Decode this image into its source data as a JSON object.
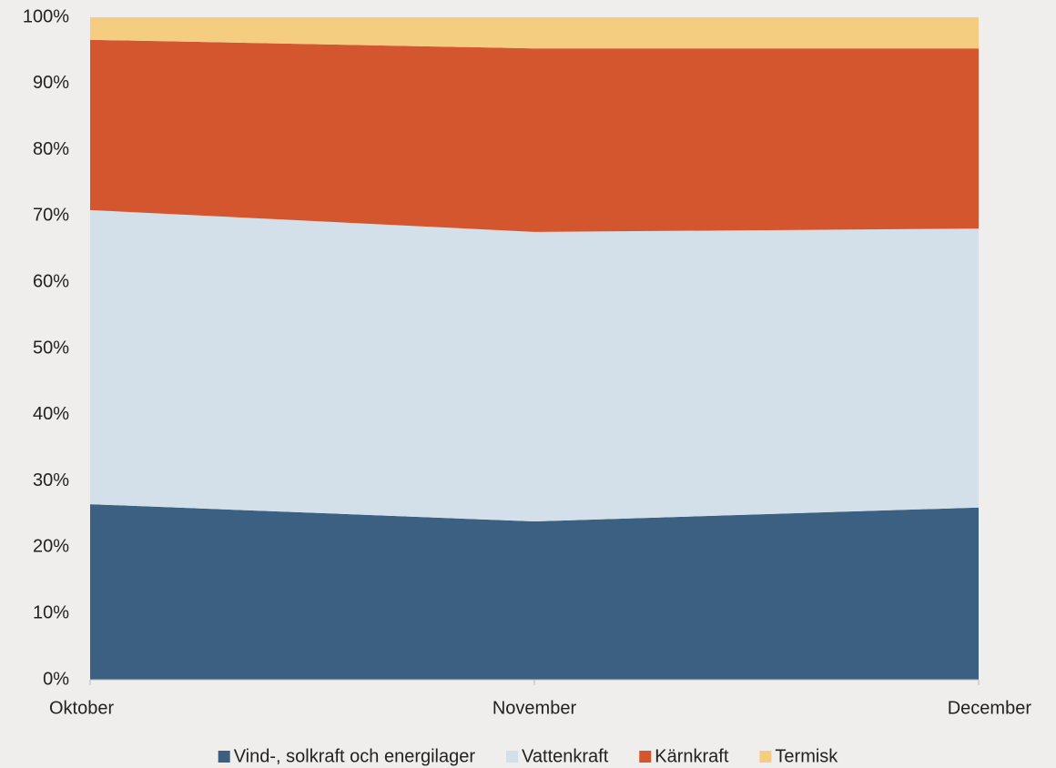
{
  "chart_data": {
    "type": "stacked_area",
    "categories": [
      "Oktober",
      "November",
      "December"
    ],
    "series": [
      {
        "name": "Vind-, solkraft och energilager",
        "color": "#3b6082",
        "values": [
          26.5,
          23.9,
          26.0
        ]
      },
      {
        "name": "Vattenkraft",
        "color": "#d3e0ea",
        "values": [
          44.4,
          43.7,
          42.1
        ]
      },
      {
        "name": "Kärnkraft",
        "color": "#d4562e",
        "values": [
          25.7,
          27.7,
          27.2
        ]
      },
      {
        "name": "Termisk",
        "color": "#f5cd80",
        "values": [
          3.4,
          4.7,
          4.7
        ]
      }
    ],
    "ylim": [
      0,
      100
    ],
    "yticks": [
      {
        "value": 0,
        "label": "0%"
      },
      {
        "value": 10,
        "label": "10%"
      },
      {
        "value": 20,
        "label": "20%"
      },
      {
        "value": 30,
        "label": "30%"
      },
      {
        "value": 40,
        "label": "40%"
      },
      {
        "value": 50,
        "label": "50%"
      },
      {
        "value": 60,
        "label": "60%"
      },
      {
        "value": 70,
        "label": "70%"
      },
      {
        "value": 80,
        "label": "80%"
      },
      {
        "value": 90,
        "label": "90%"
      },
      {
        "value": 100,
        "label": "100%"
      }
    ],
    "legend": "bottom"
  }
}
